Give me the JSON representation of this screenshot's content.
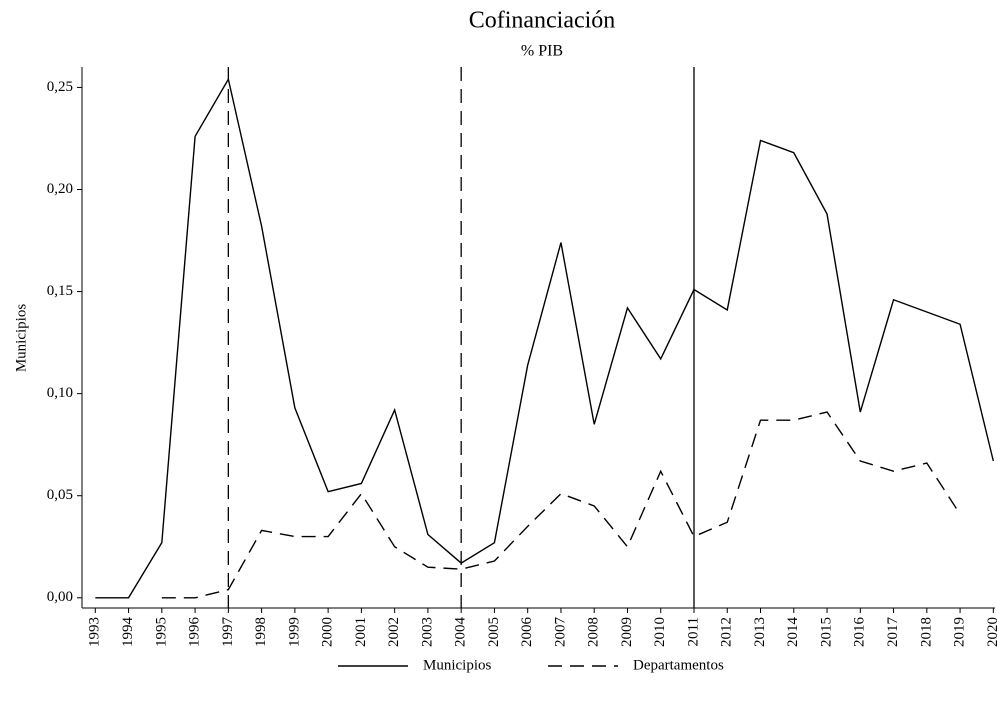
{
  "chart_data": {
    "type": "line",
    "title": "Cofinanciación",
    "subtitle": "% PIB",
    "y_label": "Municipios",
    "x": [
      1993,
      1994,
      1995,
      1996,
      1997,
      1998,
      1999,
      2000,
      2001,
      2002,
      2003,
      2004,
      2005,
      2006,
      2007,
      2008,
      2009,
      2010,
      2011,
      2012,
      2013,
      2014,
      2015,
      2016,
      2017,
      2018,
      2019,
      2020
    ],
    "series": [
      {
        "name": "Municipios",
        "color": "#000000",
        "dash": "solid",
        "values": [
          0,
          0,
          0.027,
          0.226,
          0.254,
          0.182,
          0.093,
          0.052,
          0.056,
          0.092,
          0.031,
          0.017,
          0.027,
          0.114,
          0.174,
          0.085,
          0.142,
          0.117,
          0.151,
          0.141,
          0.224,
          0.218,
          0.188,
          0.091,
          0.146,
          0.14,
          0.134,
          0.067
        ]
      },
      {
        "name": "Departamentos",
        "color": "#000000",
        "dash": "dashed",
        "values": [
          null,
          null,
          0,
          0,
          0.004,
          0.033,
          0.03,
          0.03,
          0.051,
          0.025,
          0.015,
          0.014,
          0.018,
          0.035,
          0.051,
          0.045,
          0.025,
          0.062,
          0.03,
          0.037,
          0.087,
          0.087,
          0.091,
          0.067,
          0.062,
          0.066,
          0.041,
          null
        ]
      }
    ],
    "xlim": [
      1992.6,
      2020.05
    ],
    "xticks": [
      1993,
      1994,
      1995,
      1996,
      1997,
      1998,
      1999,
      2000,
      2001,
      2002,
      2003,
      2004,
      2005,
      2006,
      2007,
      2008,
      2009,
      2010,
      2011,
      2012,
      2013,
      2014,
      2015,
      2016,
      2017,
      2018,
      2019,
      2020
    ],
    "ylim": [
      -0.005,
      0.26
    ],
    "yticks": [
      {
        "value": 0,
        "label": "0,00"
      },
      {
        "value": 0.05,
        "label": "0,05"
      },
      {
        "value": 0.1,
        "label": "0,10"
      },
      {
        "value": 0.15,
        "label": "0,15"
      },
      {
        "value": 0.2,
        "label": "0,20"
      },
      {
        "value": 0.25,
        "label": "0,25"
      }
    ],
    "reference_lines": [
      {
        "x": 1997,
        "dash": "dashed"
      },
      {
        "x": 2004,
        "dash": "dashed"
      },
      {
        "x": 2011,
        "dash": "solid"
      }
    ],
    "legend": "bottom",
    "grid": false
  }
}
